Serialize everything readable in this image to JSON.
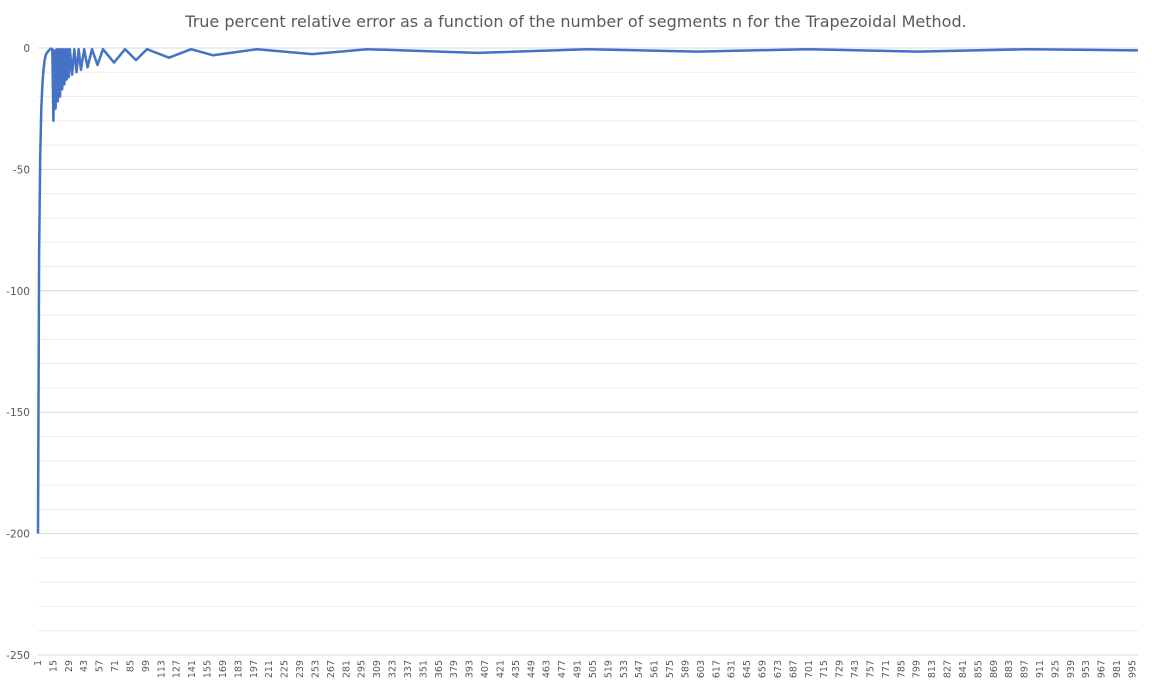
{
  "chart_data": {
    "type": "line",
    "title": "True percent relative error as a function of the number of segments n for the Trapezoidal Method.",
    "xlabel": "",
    "ylabel": "",
    "ylim": [
      -250,
      0
    ],
    "yticks": [
      0,
      -50,
      -100,
      -150,
      -200,
      -250
    ],
    "grid": true,
    "line_color": "#4472c4",
    "grid_color": "#d9d9d9",
    "xlim": [
      1,
      1000
    ],
    "xtick_start": 1,
    "xtick_step": 14,
    "xtick_end": 995,
    "series": [
      {
        "name": "",
        "x": [
          1,
          2,
          3,
          4,
          5,
          6,
          7,
          8,
          9,
          10,
          11,
          12,
          13,
          14,
          15,
          16,
          17,
          18,
          19,
          20,
          21,
          22,
          23,
          24,
          25,
          26,
          27,
          28,
          29,
          30,
          32,
          34,
          36,
          38,
          40,
          43,
          46,
          50,
          55,
          60,
          70,
          80,
          90,
          100,
          120,
          140,
          160,
          200,
          250,
          300,
          400,
          500,
          600,
          700,
          800,
          900,
          1000
        ],
        "values": [
          -200,
          -85,
          -45,
          -25,
          -15,
          -9,
          -5,
          -3,
          -2,
          -1.5,
          -1,
          -0.5,
          -0.2,
          -0.5,
          -30,
          -1,
          -25,
          -0.5,
          -22,
          -0.5,
          -20,
          -0.5,
          -17,
          -0.5,
          -15,
          -0.5,
          -13,
          -0.5,
          -12,
          -0.5,
          -11,
          -0.5,
          -10,
          -0.5,
          -9,
          -0.5,
          -8,
          -0.5,
          -7,
          -0.5,
          -6,
          -0.5,
          -5,
          -0.5,
          -4,
          -0.5,
          -3,
          -0.5,
          -2.5,
          -0.5,
          -2,
          -0.5,
          -1.5,
          -0.5,
          -1.5,
          -0.5,
          -1
        ]
      }
    ]
  }
}
